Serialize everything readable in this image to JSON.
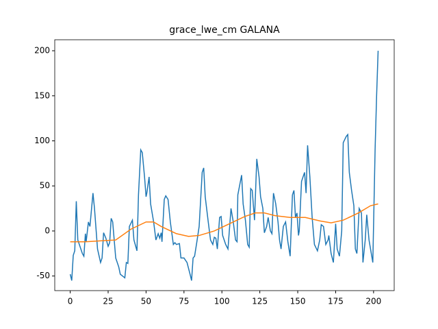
{
  "chart_data": {
    "type": "line",
    "title": "grace_lwe_cm GALANA",
    "xlim": [
      -10.2,
      213.6
    ],
    "ylim": [
      -66.2,
      212.2
    ],
    "xticks": [
      0,
      25,
      50,
      75,
      100,
      125,
      150,
      175,
      200
    ],
    "yticks": [
      -50,
      0,
      50,
      100,
      150,
      200
    ],
    "grid": false,
    "series": [
      {
        "color": "#1f77b4",
        "x": [
          0,
          1,
          2,
          3,
          4,
          5,
          8,
          9,
          10,
          10.5,
          12,
          13,
          15,
          16,
          18,
          20,
          21,
          22,
          23.5,
          25,
          26,
          27,
          28,
          30,
          32,
          33,
          36,
          37,
          38,
          39,
          41,
          42,
          44,
          45,
          46.5,
          47.5,
          49,
          50,
          50.5,
          52,
          53,
          55,
          56.5,
          58,
          59,
          60,
          60.5,
          62,
          63,
          64.5,
          66,
          68,
          69,
          70,
          72,
          73,
          75,
          77,
          79,
          80,
          81,
          82,
          83.5,
          85,
          87,
          88,
          89,
          91,
          92.5,
          94,
          95,
          96,
          97,
          98.5,
          99.5,
          100.5,
          102.5,
          104,
          106,
          107.5,
          109,
          110,
          110.5,
          113,
          114,
          115.5,
          117,
          118,
          119,
          120,
          121.5,
          123,
          124.5,
          125.5,
          127,
          128,
          129.5,
          130.5,
          132,
          133,
          134,
          135.5,
          137,
          138,
          139,
          140.5,
          142,
          143.5,
          145,
          146.5,
          147.5,
          148.5,
          149.5,
          150.5,
          151,
          152.5,
          154.5,
          155.5,
          156.5,
          158,
          159.5,
          161,
          163,
          164.5,
          165.5,
          167,
          168.5,
          170,
          170.5,
          172,
          173.5,
          175,
          176,
          177.5,
          179,
          180,
          182,
          183,
          184,
          185.5,
          187,
          188,
          189,
          190.5,
          192,
          193,
          194.5,
          195.5,
          197,
          198.5,
          199.5,
          201,
          202,
          203
        ],
        "values": [
          -48,
          -55,
          -27,
          -22,
          33,
          -10,
          -25,
          -28,
          -3,
          -12,
          10,
          5,
          42,
          25,
          -20,
          -35,
          -30,
          -2,
          -8,
          -17,
          -13,
          14,
          10,
          -30,
          -40,
          -48,
          -52,
          -35,
          -36,
          5,
          12,
          -10,
          -22,
          40,
          90,
          87,
          60,
          38,
          42,
          60,
          30,
          10,
          -10,
          -3,
          -8,
          -2,
          -12,
          35,
          39,
          35,
          10,
          -15,
          -13,
          -15,
          -14,
          -30,
          -30,
          -35,
          -48,
          -55,
          -30,
          -28,
          -12,
          5,
          65,
          70,
          38,
          10,
          -10,
          -15,
          -7,
          -8,
          -20,
          15,
          16,
          -5,
          -15,
          -20,
          25,
          10,
          -10,
          -12,
          40,
          62,
          30,
          12,
          -15,
          -18,
          47,
          45,
          12,
          80,
          60,
          38,
          25,
          -2,
          5,
          15,
          0,
          -3,
          42,
          30,
          10,
          -10,
          -20,
          5,
          10,
          -12,
          -28,
          40,
          45,
          15,
          20,
          -5,
          0,
          55,
          65,
          42,
          95,
          60,
          15,
          -15,
          -22,
          -10,
          7,
          5,
          -15,
          -10,
          -5,
          -25,
          -35,
          8,
          -20,
          -28,
          0,
          98,
          105,
          107,
          65,
          45,
          28,
          -20,
          -25,
          25,
          20,
          -35,
          -10,
          18,
          -10,
          -25,
          -35,
          90,
          150,
          200
        ]
      },
      {
        "color": "#ff7f0e",
        "x": [
          0,
          10,
          20,
          30,
          40,
          50,
          55,
          60,
          70,
          78,
          85,
          95,
          105,
          115,
          122,
          128,
          135,
          145,
          155,
          165,
          172,
          180,
          190,
          198,
          203
        ],
        "values": [
          -12,
          -12,
          -11,
          -10,
          2,
          10,
          10,
          5,
          -3,
          -6,
          -5,
          0,
          8,
          16,
          20,
          20,
          17,
          15,
          15,
          11,
          9,
          12,
          20,
          28,
          30
        ]
      }
    ]
  }
}
